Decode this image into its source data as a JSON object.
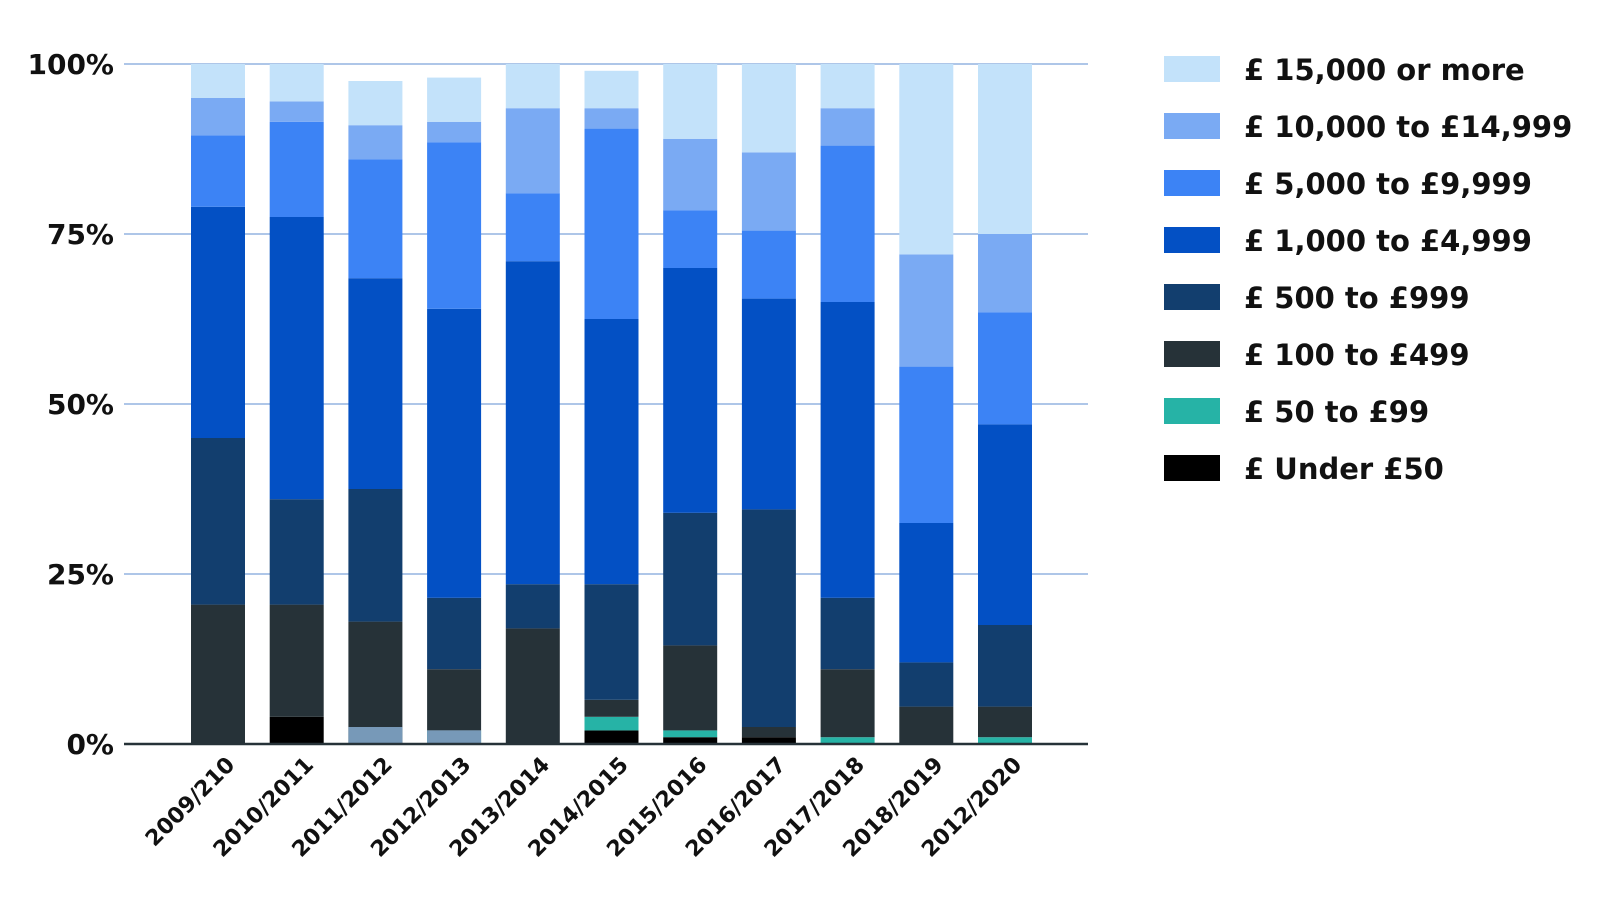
{
  "chart_data": {
    "type": "bar",
    "stacked": true,
    "normalized": true,
    "title": "",
    "xlabel": "",
    "ylabel": "",
    "ylim": [
      0,
      100
    ],
    "yticks": [
      0,
      25,
      50,
      75,
      100
    ],
    "ytick_labels": [
      "0%",
      "25%",
      "50%",
      "75%",
      "100%"
    ],
    "grid": true,
    "legend_position": "right",
    "categories": [
      "2009/210",
      "2010/2011",
      "2011/2012",
      "2012/2013",
      "2013/2014",
      "2014/2015",
      "2015/2016",
      "2016/2017",
      "2017/2018",
      "2018/2019",
      "2012/2020"
    ],
    "series": [
      {
        "name": "£ Under £50",
        "color": "#000000",
        "values": [
          0,
          4,
          0,
          0,
          0,
          2,
          1,
          1,
          0,
          0,
          0
        ]
      },
      {
        "name": "£ 50 to £99",
        "color": "#26b3a6",
        "values": [
          0,
          0,
          0,
          2,
          0,
          2,
          1,
          0,
          1,
          0,
          1
        ]
      },
      {
        "name": "£ 100 to £499",
        "color": "#263238",
        "values": [
          20.5,
          16.5,
          18,
          9,
          17,
          2.5,
          12.5,
          1.5,
          10,
          5.5,
          4.5
        ]
      },
      {
        "name": "£ 500 to £999",
        "color": "#123e6e",
        "values": [
          24.5,
          15.5,
          19.5,
          10.5,
          6.5,
          17,
          19.5,
          32,
          10.5,
          6.5,
          12
        ]
      },
      {
        "name": "£ 1,000 to £4,999",
        "color": "#0350c4",
        "values": [
          34,
          41.5,
          31,
          42.5,
          47.5,
          39,
          36,
          31,
          43.5,
          20.5,
          29.5
        ]
      },
      {
        "name": "£ 5,000 to £9,999",
        "color": "#3c83f5",
        "values": [
          10.5,
          14,
          17.5,
          24.5,
          10,
          28,
          8.5,
          10,
          23,
          23,
          16.5
        ]
      },
      {
        "name": "£ 10,000 to £14,999",
        "color": "#7aaaf3",
        "values": [
          5.5,
          3,
          5,
          3,
          12.5,
          3,
          10.5,
          11.5,
          5.5,
          16.5,
          11.5
        ]
      },
      {
        "name": "£ 15,000 or more",
        "color": "#c3e2fa",
        "values": [
          5,
          5.5,
          6.5,
          6.5,
          6.5,
          5.5,
          11,
          13,
          6.5,
          28,
          25
        ]
      }
    ],
    "extra_segments": [
      {
        "category": "2011/2012",
        "color": "#7799b8",
        "values_bottom": 2.5
      },
      {
        "category": "2012/2013",
        "color": "#7799b8",
        "values_bottom": 2
      }
    ],
    "legend_order": [
      "£ 15,000 or more",
      "£ 10,000 to £14,999",
      "£ 5,000 to £9,999",
      "£ 1,000 to £4,999",
      "£ 500 to £999",
      "£ 100 to £499",
      "£ 50 to £99",
      "£ Under £50"
    ],
    "colors": {
      "gridline": "#7da3d9",
      "axis": "#263238",
      "background": "#ffffff"
    }
  }
}
